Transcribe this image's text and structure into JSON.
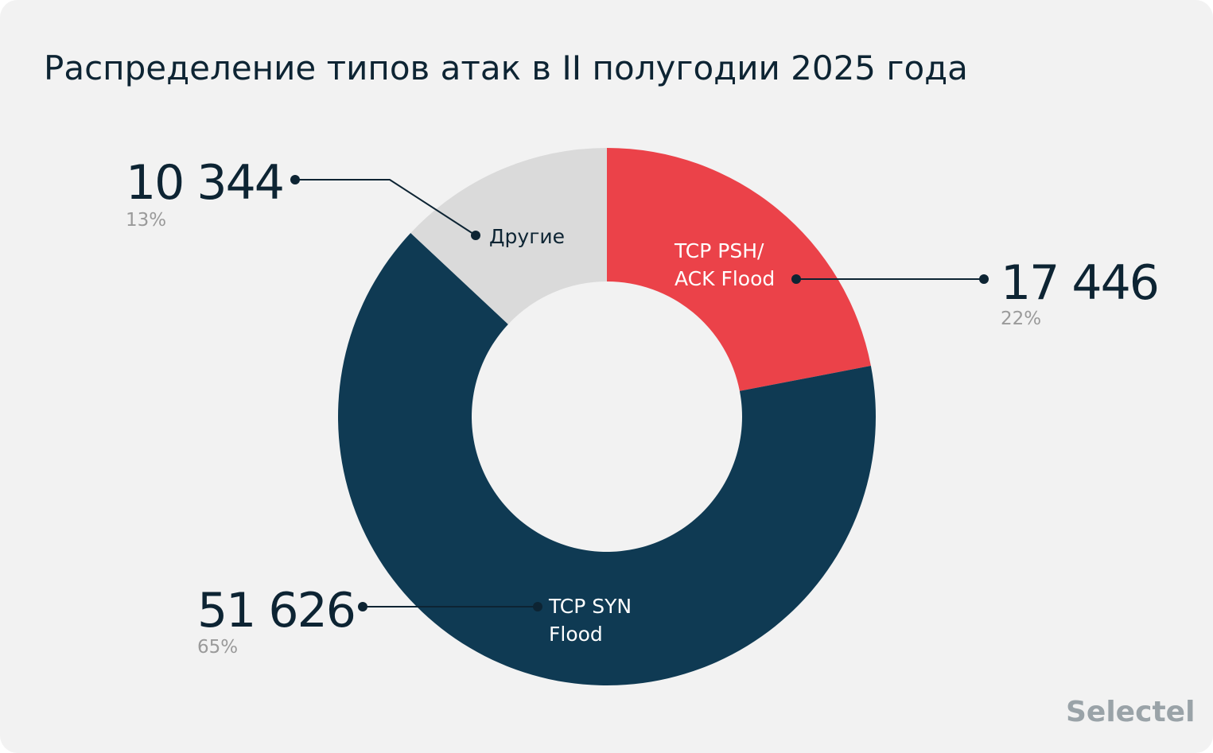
{
  "chart_data": {
    "type": "pie",
    "donut": true,
    "title": "Распределение типов атак в II полугодии 2025 года",
    "slices": [
      {
        "label": "TCP PSH/ ACK Flood",
        "label_lines": [
          "TCP PSH/",
          "ACK Flood"
        ],
        "value": 17446,
        "value_text": "17 446",
        "percent": "22%",
        "color": "#eb4249"
      },
      {
        "label": "TCP SYN Flood",
        "label_lines": [
          "TCP SYN",
          "Flood"
        ],
        "value": 51626,
        "value_text": "51 626",
        "percent": "65%",
        "color": "#0f3a53"
      },
      {
        "label": "Другие",
        "label_lines": [
          "Другие"
        ],
        "value": 10344,
        "value_text": "10 344",
        "percent": "13%",
        "color": "#dadada"
      }
    ],
    "start_angle": "12 o'clock",
    "direction": "clockwise"
  },
  "brand": {
    "logo": "Selectel",
    "color": "#9aa3a8"
  },
  "colors": {
    "background": "#f2f2f2",
    "text": "#0d2433",
    "muted": "#9a9a9a"
  }
}
